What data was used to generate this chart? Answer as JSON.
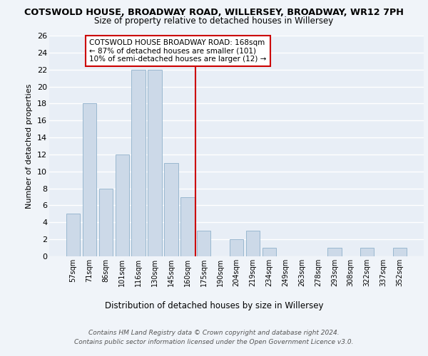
{
  "title_line1": "COTSWOLD HOUSE, BROADWAY ROAD, WILLERSEY, BROADWAY, WR12 7PH",
  "title_line2": "Size of property relative to detached houses in Willersey",
  "xlabel": "Distribution of detached houses by size in Willersey",
  "ylabel": "Number of detached properties",
  "bar_labels": [
    "57sqm",
    "71sqm",
    "86sqm",
    "101sqm",
    "116sqm",
    "130sqm",
    "145sqm",
    "160sqm",
    "175sqm",
    "190sqm",
    "204sqm",
    "219sqm",
    "234sqm",
    "249sqm",
    "263sqm",
    "278sqm",
    "293sqm",
    "308sqm",
    "322sqm",
    "337sqm",
    "352sqm"
  ],
  "bar_values": [
    5,
    18,
    8,
    12,
    22,
    22,
    11,
    7,
    3,
    0,
    2,
    3,
    1,
    0,
    0,
    0,
    1,
    0,
    1,
    0,
    1
  ],
  "bar_color": "#ccd9e8",
  "bar_edge_color": "#9ab8d0",
  "vline_x": 7.5,
  "vline_color": "#cc0000",
  "annotation_text": "COTSWOLD HOUSE BROADWAY ROAD: 168sqm\n← 87% of detached houses are smaller (101)\n10% of semi-detached houses are larger (12) →",
  "annotation_box_color": "#ffffff",
  "annotation_box_edge": "#cc0000",
  "ylim": [
    0,
    26
  ],
  "yticks": [
    0,
    2,
    4,
    6,
    8,
    10,
    12,
    14,
    16,
    18,
    20,
    22,
    24,
    26
  ],
  "fig_bg": "#f0f4f9",
  "plot_bg": "#e8eef6",
  "grid_color": "#ffffff",
  "footer_line1": "Contains HM Land Registry data © Crown copyright and database right 2024.",
  "footer_line2": "Contains public sector information licensed under the Open Government Licence v3.0."
}
